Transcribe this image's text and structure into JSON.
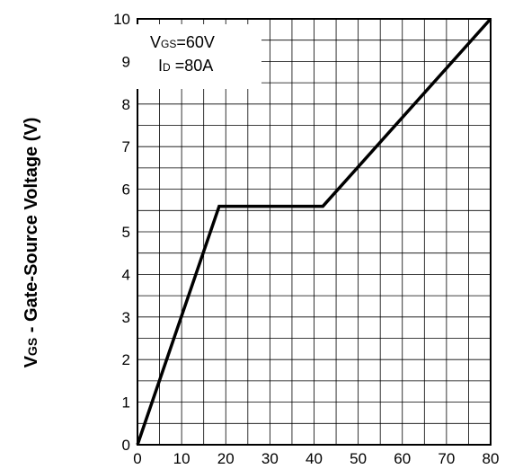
{
  "chart_data": {
    "type": "line",
    "xlabel": "",
    "ylabel": {
      "main": "V",
      "subscript": "GS",
      "rest": " - Gate-Source Voltage (V)"
    },
    "xlim": [
      0,
      80
    ],
    "ylim": [
      0,
      10
    ],
    "x_ticks": [
      0,
      10,
      20,
      30,
      40,
      50,
      60,
      70,
      80
    ],
    "y_ticks": [
      0,
      1,
      2,
      3,
      4,
      5,
      6,
      7,
      8,
      9,
      10
    ],
    "grid": true,
    "series": [
      {
        "x": [
          0,
          18.5,
          42,
          80
        ],
        "y": [
          0,
          5.6,
          5.6,
          10.0
        ]
      }
    ],
    "annotations": {
      "line1": {
        "main": "V",
        "subscript": "GS",
        "rest": "=60V"
      },
      "line2": {
        "main": "I",
        "subscript": "D",
        "rest": " =80A"
      }
    }
  },
  "colors": {
    "line": "#000000",
    "grid": "#000000",
    "frame": "#000000"
  }
}
